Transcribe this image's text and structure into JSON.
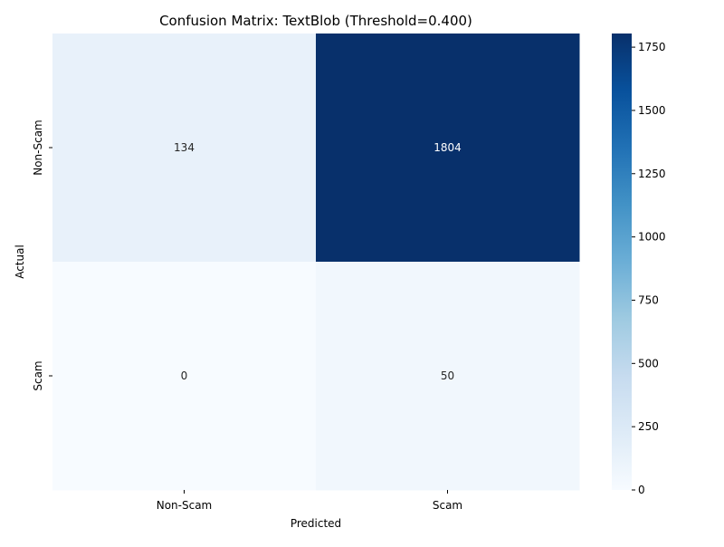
{
  "chart_data": {
    "type": "heatmap",
    "title": "Confusion Matrix: TextBlob (Threshold=0.400)",
    "xlabel": "Predicted",
    "ylabel": "Actual",
    "x_categories": [
      "Non-Scam",
      "Scam"
    ],
    "y_categories": [
      "Non-Scam",
      "Scam"
    ],
    "values": [
      [
        134,
        1804
      ],
      [
        0,
        50
      ]
    ],
    "colormap": "Blues",
    "color_range": [
      0,
      1804
    ],
    "colorbar_ticks": [
      0,
      250,
      500,
      750,
      1000,
      1250,
      1500,
      1750
    ],
    "annotations": true,
    "grid": false
  },
  "colors": {
    "low": "#f7fbff",
    "high": "#08306b",
    "text_dark": "#262626",
    "text_light": "#ffffff"
  }
}
